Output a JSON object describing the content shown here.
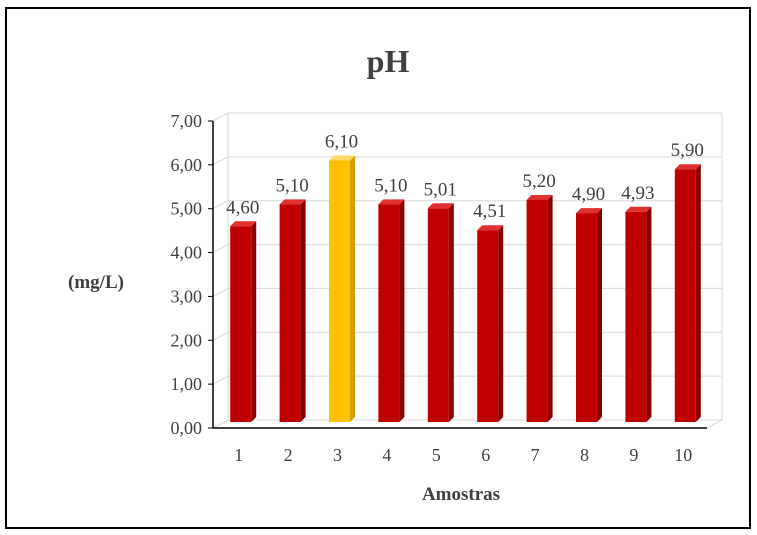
{
  "chart_data": {
    "type": "bar",
    "title": "pH",
    "xlabel": "Amostras",
    "ylabel": "(mg/L)",
    "categories": [
      "1",
      "2",
      "3",
      "4",
      "5",
      "6",
      "7",
      "8",
      "9",
      "10"
    ],
    "values": [
      4.6,
      5.1,
      6.1,
      5.1,
      5.01,
      4.51,
      5.2,
      4.9,
      4.93,
      5.9
    ],
    "data_labels": [
      "4,60",
      "5,10",
      "6,10",
      "5,10",
      "5,01",
      "4,51",
      "5,20",
      "4,90",
      "4,93",
      "5,90"
    ],
    "ylim": [
      0,
      7
    ],
    "yticks": [
      0,
      1,
      2,
      3,
      4,
      5,
      6,
      7
    ],
    "ytick_labels": [
      "0,00",
      "1,00",
      "2,00",
      "3,00",
      "4,00",
      "5,00",
      "6,00",
      "7,00"
    ],
    "grid": true,
    "legend": "none",
    "colors": {
      "bar": "#C00000",
      "bar_highlight": "#FFC000",
      "highlight_index": 2,
      "gridline": "#D9D9D9",
      "axis": "#000000"
    }
  }
}
